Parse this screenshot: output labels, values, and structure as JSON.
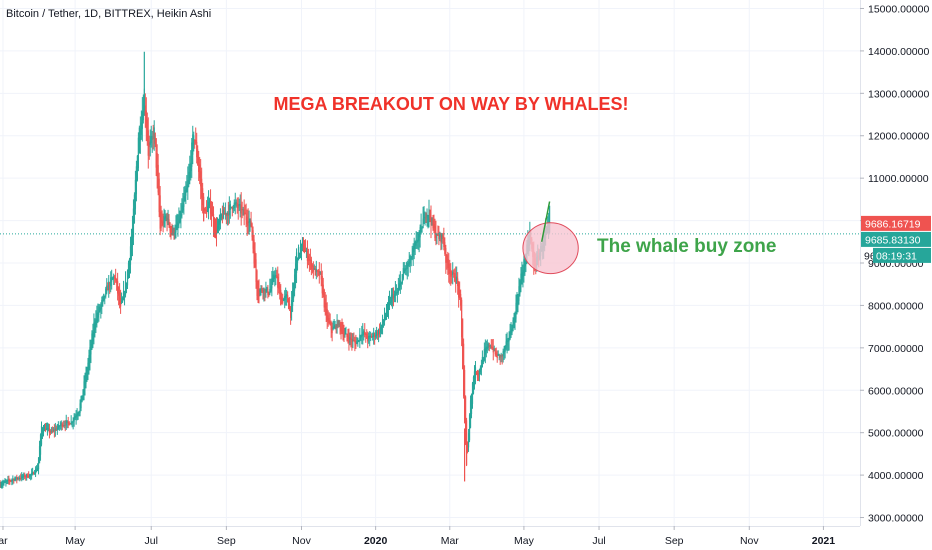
{
  "chart_data": {
    "type": "candlestick",
    "title": "Bitcoin / Tether, 1D, BITTREX, Heikin Ashi",
    "headline": "MEGA BREAKOUT ON WAY BY WHALES!",
    "zone_label": "The whale buy zone",
    "xlim": [
      0,
      870
    ],
    "ylim": [
      2800,
      15200
    ],
    "y_ticks": [
      "3000.00000",
      "4000.00000",
      "5000.00000",
      "6000.00000",
      "7000.00000",
      "8000.00000",
      "9000.00000",
      "10000.00000",
      "11000.00000",
      "12000.00000",
      "13000.00000",
      "14000.00000",
      "15000.00000"
    ],
    "y_tick_values": [
      3000,
      4000,
      5000,
      6000,
      7000,
      8000,
      9000,
      10000,
      11000,
      12000,
      13000,
      14000,
      15000
    ],
    "x_ticks": [
      {
        "label": "ar",
        "t": 3,
        "bold": false
      },
      {
        "label": "May",
        "t": 76,
        "bold": false
      },
      {
        "label": "Jul",
        "t": 153,
        "bold": false
      },
      {
        "label": "Sep",
        "t": 229,
        "bold": false
      },
      {
        "label": "Nov",
        "t": 305,
        "bold": false
      },
      {
        "label": "2020",
        "t": 380,
        "bold": true
      },
      {
        "label": "Mar",
        "t": 455,
        "bold": false
      },
      {
        "label": "May",
        "t": 530,
        "bold": false
      },
      {
        "label": "Jul",
        "t": 606,
        "bold": false
      },
      {
        "label": "Sep",
        "t": 682,
        "bold": false
      },
      {
        "label": "Nov",
        "t": 758,
        "bold": false
      },
      {
        "label": "2021",
        "t": 833,
        "bold": true
      }
    ],
    "price_lines": [
      {
        "value": 9686.16719,
        "label": "9686.16719",
        "color": "#ef5350"
      },
      {
        "value": 9685.8313,
        "label": "9685.83130",
        "color": "#26a69a"
      }
    ],
    "countdown": {
      "label": "08:19:31",
      "prefix": "96"
    },
    "anchors": [
      [
        0,
        3780
      ],
      [
        10,
        3880
      ],
      [
        20,
        3950
      ],
      [
        32,
        4010
      ],
      [
        38,
        4180
      ],
      [
        42,
        5150
      ],
      [
        52,
        5000
      ],
      [
        62,
        5200
      ],
      [
        72,
        5250
      ],
      [
        80,
        5550
      ],
      [
        88,
        6500
      ],
      [
        96,
        7700
      ],
      [
        102,
        8000
      ],
      [
        110,
        8500
      ],
      [
        116,
        8700
      ],
      [
        122,
        7900
      ],
      [
        128,
        8600
      ],
      [
        134,
        9800
      ],
      [
        140,
        12000
      ],
      [
        146,
        12900
      ],
      [
        150,
        11600
      ],
      [
        156,
        12100
      ],
      [
        162,
        9800
      ],
      [
        168,
        10100
      ],
      [
        174,
        9700
      ],
      [
        180,
        9900
      ],
      [
        186,
        10500
      ],
      [
        190,
        10900
      ],
      [
        196,
        12100
      ],
      [
        202,
        11000
      ],
      [
        206,
        10100
      ],
      [
        212,
        10400
      ],
      [
        218,
        9700
      ],
      [
        224,
        10100
      ],
      [
        230,
        10200
      ],
      [
        236,
        10400
      ],
      [
        242,
        10300
      ],
      [
        248,
        10100
      ],
      [
        254,
        9900
      ],
      [
        260,
        8300
      ],
      [
        266,
        8400
      ],
      [
        272,
        8300
      ],
      [
        278,
        8800
      ],
      [
        284,
        8100
      ],
      [
        290,
        8200
      ],
      [
        294,
        7800
      ],
      [
        300,
        9200
      ],
      [
        306,
        9400
      ],
      [
        312,
        9100
      ],
      [
        318,
        8800
      ],
      [
        324,
        8700
      ],
      [
        330,
        7700
      ],
      [
        336,
        7400
      ],
      [
        342,
        7600
      ],
      [
        348,
        7300
      ],
      [
        354,
        7200
      ],
      [
        360,
        7100
      ],
      [
        366,
        7400
      ],
      [
        372,
        7200
      ],
      [
        378,
        7300
      ],
      [
        384,
        7400
      ],
      [
        390,
        7800
      ],
      [
        396,
        8200
      ],
      [
        402,
        8300
      ],
      [
        408,
        8800
      ],
      [
        414,
        9000
      ],
      [
        420,
        9400
      ],
      [
        426,
        9800
      ],
      [
        430,
        10200
      ],
      [
        434,
        10200
      ],
      [
        438,
        9800
      ],
      [
        442,
        9600
      ],
      [
        448,
        9600
      ],
      [
        452,
        8900
      ],
      [
        458,
        8700
      ],
      [
        462,
        8600
      ],
      [
        466,
        7900
      ],
      [
        470,
        5200
      ],
      [
        472,
        4200
      ],
      [
        476,
        5800
      ],
      [
        480,
        6500
      ],
      [
        484,
        6400
      ],
      [
        490,
        6900
      ],
      [
        496,
        7100
      ],
      [
        502,
        6800
      ],
      [
        508,
        6800
      ],
      [
        514,
        7200
      ],
      [
        520,
        7700
      ],
      [
        524,
        8300
      ],
      [
        528,
        8800
      ],
      [
        532,
        9200
      ],
      [
        536,
        9700
      ],
      [
        540,
        8900
      ],
      [
        544,
        9100
      ],
      [
        548,
        9400
      ],
      [
        552,
        9700
      ],
      [
        556,
        9850
      ]
    ],
    "zone_ellipse": {
      "cx": 557,
      "cy": 9350,
      "rx_days": 28,
      "ry_price": 600,
      "fill": "#f8c6d2",
      "stroke": "#e04c5c"
    },
    "breakout_arrow": {
      "x": [
        548,
        556
      ],
      "y": [
        9500,
        10450
      ],
      "color": "#2e9b3a"
    },
    "colors": {
      "up": "#26a69a",
      "down": "#ef5350",
      "grid": "#f0f3fa",
      "axis": "#e0e3eb"
    }
  }
}
